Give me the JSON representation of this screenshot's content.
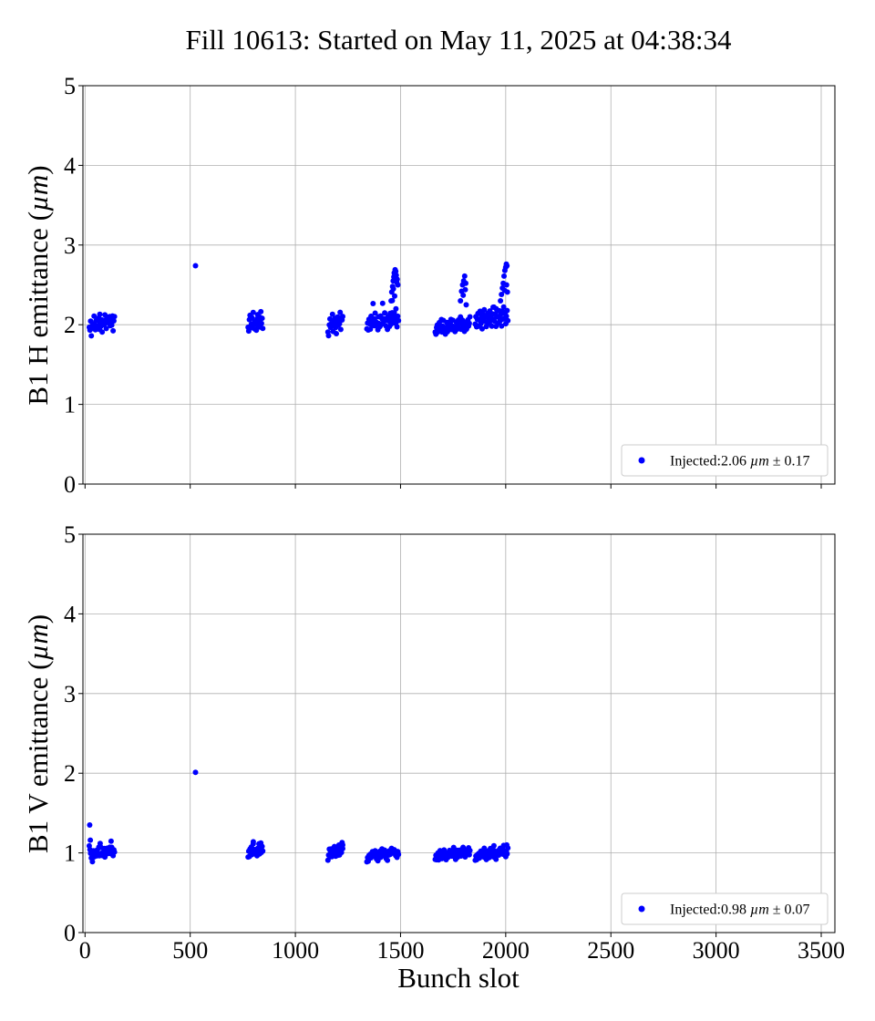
{
  "chart_data": {
    "type": "scatter",
    "title": "Fill 10613: Started on May 11, 2025 at 04:38:34",
    "xlabel": "Bunch slot",
    "xlim": [
      -10,
      3565
    ],
    "xticks": [
      0,
      500,
      1000,
      1500,
      2000,
      2500,
      3000,
      3500
    ],
    "ylim": [
      0,
      5
    ],
    "yticks": [
      0,
      1,
      2,
      3,
      4,
      5
    ],
    "grid": true,
    "marker_color": "#0000ff",
    "legend_placement": "lower-right",
    "panels": [
      {
        "ylabel": "B1 H emittance (µm)",
        "ylabel_parts": {
          "pre": "B1 H emittance (",
          "unit": "µm",
          "post": ")"
        },
        "legend": {
          "prefix": "Injected:",
          "value": "2.06",
          "unit": "µm",
          "pm": "±",
          "err": "0.17"
        },
        "groups": [
          {
            "x0": 20,
            "x1": 140,
            "pattern": [
              1.98,
              1.93,
              2.03,
              1.86,
              1.97,
              2.01,
              1.94,
              2.08,
              1.99,
              1.91,
              2.04,
              1.96,
              2.02,
              1.95,
              2.05,
              1.92
            ],
            "trend": 0.08
          },
          {
            "x0": 775,
            "x1": 845,
            "pattern": [
              1.98,
              1.92,
              2.05,
              2.12,
              1.96,
              2.01,
              2.08,
              1.94,
              2.15,
              1.99,
              2.04,
              1.93
            ],
            "trend": 0.03
          },
          {
            "x0": 1155,
            "x1": 1225,
            "pattern": [
              1.92,
              1.86,
              1.98,
              2.07,
              1.95,
              2.01,
              1.97,
              2.1,
              1.9,
              2.03,
              1.99,
              2.05
            ],
            "trend": 0.06
          },
          {
            "x0": 1340,
            "x1": 1490,
            "pattern": [
              1.96,
              2.02,
              1.92,
              2.07,
              2.0,
              1.95,
              2.1,
              1.98,
              2.04,
              2.25,
              1.99,
              2.06,
              2.12,
              2.03
            ],
            "trend": 0.05
          },
          {
            "x0": 1665,
            "x1": 1830,
            "pattern": [
              1.92,
              1.88,
              1.95,
              2.0,
              1.9,
              1.96,
              2.02,
              1.93,
              1.98,
              2.05,
              1.91,
              1.97,
              2.03,
              1.94
            ],
            "trend": 0.05
          },
          {
            "x0": 1855,
            "x1": 2010,
            "pattern": [
              2.02,
              2.1,
              1.96,
              2.07,
              2.13,
              1.99,
              2.05,
              2.15,
              2.01,
              2.08,
              1.95,
              2.12,
              2.04,
              2.18
            ],
            "trend": 0.05
          }
        ],
        "outliers": [
          {
            "x": 525,
            "y": 2.74
          },
          {
            "x": 70,
            "y": 2.13
          },
          {
            "x": 1455,
            "y": 2.3
          },
          {
            "x": 1458,
            "y": 2.41
          },
          {
            "x": 1462,
            "y": 2.48
          },
          {
            "x": 1465,
            "y": 2.55
          },
          {
            "x": 1468,
            "y": 2.6
          },
          {
            "x": 1470,
            "y": 2.65
          },
          {
            "x": 1474,
            "y": 2.69
          },
          {
            "x": 1477,
            "y": 2.67
          },
          {
            "x": 1480,
            "y": 2.62
          },
          {
            "x": 1484,
            "y": 2.57
          },
          {
            "x": 1487,
            "y": 2.5
          },
          {
            "x": 1472,
            "y": 2.36
          },
          {
            "x": 1466,
            "y": 2.45
          },
          {
            "x": 1476,
            "y": 2.58
          },
          {
            "x": 1482,
            "y": 2.53
          },
          {
            "x": 1460,
            "y": 2.15
          },
          {
            "x": 1478,
            "y": 2.2
          },
          {
            "x": 1785,
            "y": 2.3
          },
          {
            "x": 1790,
            "y": 2.42
          },
          {
            "x": 1795,
            "y": 2.5
          },
          {
            "x": 1800,
            "y": 2.55
          },
          {
            "x": 1805,
            "y": 2.61
          },
          {
            "x": 1810,
            "y": 2.52
          },
          {
            "x": 1798,
            "y": 2.37
          },
          {
            "x": 1808,
            "y": 2.44
          },
          {
            "x": 1812,
            "y": 2.25
          },
          {
            "x": 1975,
            "y": 2.3
          },
          {
            "x": 1980,
            "y": 2.38
          },
          {
            "x": 1984,
            "y": 2.46
          },
          {
            "x": 1988,
            "y": 2.52
          },
          {
            "x": 1992,
            "y": 2.61
          },
          {
            "x": 1996,
            "y": 2.68
          },
          {
            "x": 2000,
            "y": 2.72
          },
          {
            "x": 2003,
            "y": 2.76
          },
          {
            "x": 2006,
            "y": 2.74
          },
          {
            "x": 1995,
            "y": 2.43
          },
          {
            "x": 2004,
            "y": 2.5
          },
          {
            "x": 2008,
            "y": 2.41
          },
          {
            "x": 1940,
            "y": 2.22
          },
          {
            "x": 1955,
            "y": 2.2
          }
        ]
      },
      {
        "ylabel": "B1 V emittance (µm)",
        "ylabel_parts": {
          "pre": "B1 V emittance (",
          "unit": "µm",
          "post": ")"
        },
        "legend": {
          "prefix": "Injected:",
          "value": "0.98",
          "unit": "µm",
          "pm": "±",
          "err": "0.07"
        },
        "groups": [
          {
            "x0": 20,
            "x1": 140,
            "pattern": [
              1.1,
              1.04,
              0.98,
              0.94,
              1.0,
              0.96,
              1.02,
              0.93,
              0.99,
              0.97,
              1.03,
              0.95,
              1.01,
              0.98,
              1.05,
              0.96
            ],
            "trend": 0.04
          },
          {
            "x0": 775,
            "x1": 845,
            "pattern": [
              0.96,
              1.02,
              0.94,
              1.05,
              0.99,
              1.08,
              0.97,
              1.03,
              1.11,
              0.98,
              1.04,
              1.0
            ],
            "trend": 0.03
          },
          {
            "x0": 1155,
            "x1": 1225,
            "pattern": [
              0.92,
              0.97,
              1.03,
              0.95,
              1.0,
              1.05,
              0.94,
              0.99,
              1.02,
              0.96,
              1.07,
              1.01
            ],
            "trend": 0.05
          },
          {
            "x0": 1340,
            "x1": 1490,
            "pattern": [
              0.9,
              0.94,
              0.88,
              0.97,
              0.92,
              0.99,
              0.93,
              0.96,
              1.01,
              0.94,
              0.98,
              0.95,
              1.0,
              0.97
            ],
            "trend": 0.06
          },
          {
            "x0": 1665,
            "x1": 1830,
            "pattern": [
              0.93,
              0.97,
              0.9,
              0.95,
              0.99,
              0.92,
              0.96,
              1.01,
              0.94,
              0.98,
              0.93,
              1.0,
              0.96,
              1.03
            ],
            "trend": 0.05
          },
          {
            "x0": 1855,
            "x1": 2010,
            "pattern": [
              0.92,
              0.96,
              0.9,
              0.98,
              0.94,
              1.0,
              0.93,
              0.97,
              1.02,
              0.95,
              0.99,
              0.94,
              1.01,
              1.05
            ],
            "trend": 0.05
          }
        ],
        "outliers": [
          {
            "x": 525,
            "y": 2.01
          },
          {
            "x": 22,
            "y": 1.35
          },
          {
            "x": 25,
            "y": 1.16
          },
          {
            "x": 35,
            "y": 0.89
          },
          {
            "x": 800,
            "y": 1.14
          },
          {
            "x": 1225,
            "y": 1.1
          },
          {
            "x": 2005,
            "y": 1.1
          }
        ]
      }
    ]
  }
}
